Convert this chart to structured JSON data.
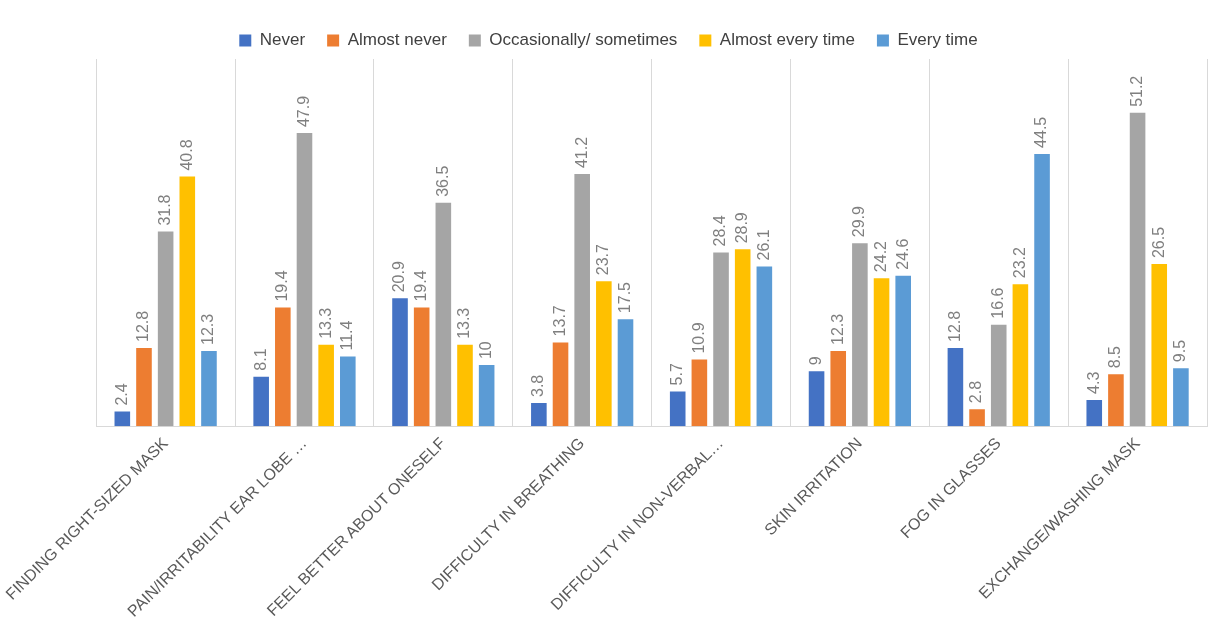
{
  "chart_data": {
    "type": "bar",
    "categories": [
      "FINDING RIGHT-SIZED MASK",
      "PAIN/IRRITABILITY EAR LOBE …",
      "FEEL BETTER ABOUT ONESELF",
      "DIFFICULTY IN BREATHING",
      "DIFFICULTY IN NON-VERBAL…",
      "SKIN IRRITATION",
      "FOG IN GLASSES",
      "EXCHANGE/WASHING MASK"
    ],
    "series": [
      {
        "name": "Never",
        "color": "#4472c4",
        "values": [
          2.4,
          8.1,
          20.9,
          3.8,
          5.7,
          9,
          12.8,
          4.3
        ]
      },
      {
        "name": "Almost never",
        "color": "#ed7d31",
        "values": [
          12.8,
          19.4,
          19.4,
          13.7,
          10.9,
          12.3,
          2.8,
          8.5
        ]
      },
      {
        "name": "Occasionally/ sometimes",
        "color": "#a5a5a5",
        "values": [
          31.8,
          47.9,
          36.5,
          41.2,
          28.4,
          29.9,
          16.6,
          51.2
        ]
      },
      {
        "name": "Almost every time",
        "color": "#ffc000",
        "values": [
          40.8,
          13.3,
          13.3,
          23.7,
          28.9,
          24.2,
          23.2,
          26.5
        ]
      },
      {
        "name": "Every time",
        "color": "#5b9bd5",
        "values": [
          12.3,
          11.4,
          10,
          17.5,
          26.1,
          24.6,
          44.5,
          9.5
        ]
      }
    ],
    "ylim": [
      0,
      60
    ],
    "tick_labels": "x",
    "grid": "x",
    "legend": "top",
    "data_labels": true
  }
}
